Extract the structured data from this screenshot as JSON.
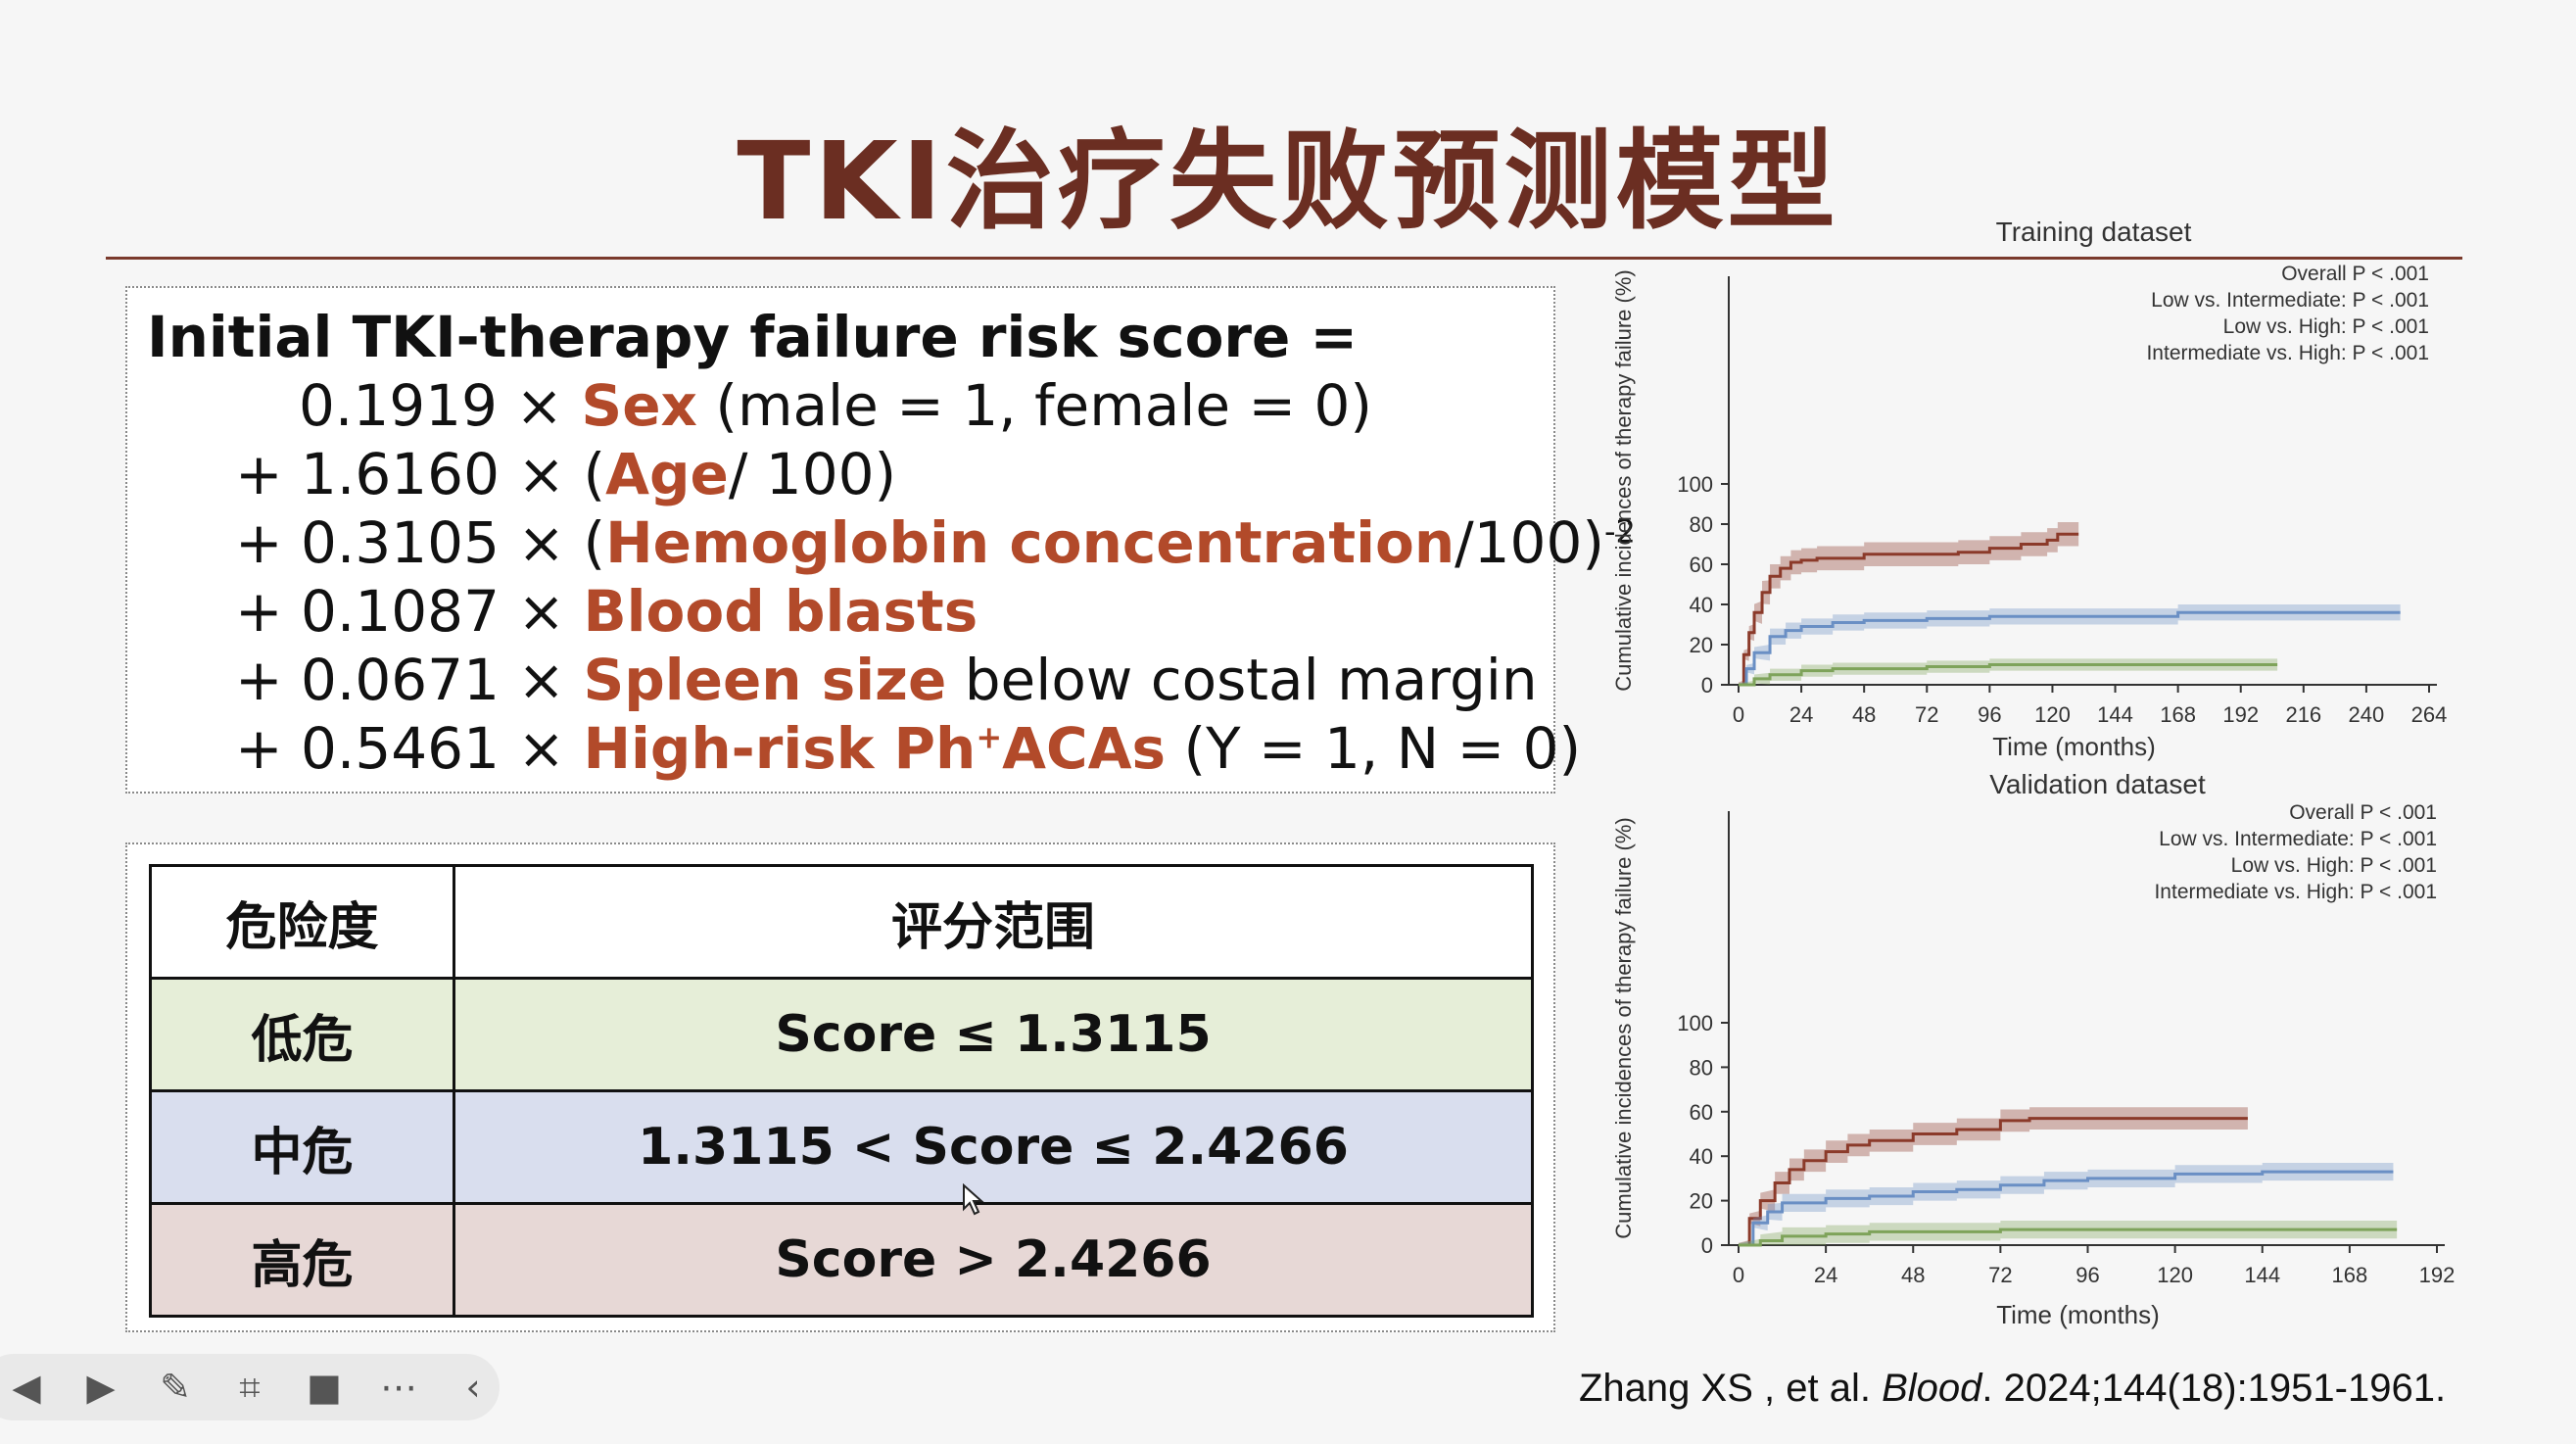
{
  "slide": {
    "title": "TKI治疗失败预测模型",
    "citation": {
      "authors": "Zhang XS , et al. ",
      "journal": "Blood",
      "details": ". 2024;144(18):1951-1961."
    }
  },
  "formula": {
    "heading": "Initial TKI-therapy failure risk score =",
    "terms": [
      {
        "prefix": "0.1919 × ",
        "name": "Sex",
        "suffix": " (male = 1, female = 0)"
      },
      {
        "prefix": "+ 1.6160 × (",
        "name": "Age",
        "suffix": "/ 100)"
      },
      {
        "prefix": "+ 0.3105 × (",
        "name": "Hemoglobin concentration",
        "suffix": "/100)",
        "superscript": "-2"
      },
      {
        "prefix": "+ 0.1087 × ",
        "name": "Blood blasts",
        "suffix": ""
      },
      {
        "prefix": "+ 0.0671 × ",
        "name": "Spleen size",
        "suffix": " below costal margin"
      },
      {
        "prefix": "+ 0.5461 × ",
        "name": "High-risk Ph",
        "name_sup": "+",
        "name_tail": "ACAs",
        "suffix": " (Y = 1, N = 0)"
      }
    ]
  },
  "risk_table": {
    "headers": [
      "危险度",
      "评分范围"
    ],
    "rows": [
      {
        "level": "低危",
        "range": "Score ≤ 1.3115"
      },
      {
        "level": "中危",
        "range": "1.3115 < Score ≤ 2.4266"
      },
      {
        "level": "高危",
        "range": "Score > 2.4266"
      }
    ]
  },
  "colors": {
    "title": "#6b2e22",
    "highlight": "#b24a2a",
    "low_row": "#e6eed8",
    "mid_row": "#d9deee",
    "high_row": "#e7d8d6",
    "high_series": "#8b3a2a",
    "intermediate_series": "#6a8fc4",
    "low_series": "#7ea35a"
  },
  "chart_data": [
    {
      "type": "line",
      "title": "Training dataset",
      "xlabel": "Time (months)",
      "ylabel": "Cumulative incidences of therapy failure (%)",
      "xticks": [
        0,
        24,
        48,
        72,
        96,
        120,
        144,
        168,
        192,
        216,
        240,
        264
      ],
      "yticks": [
        0,
        20,
        40,
        60,
        80,
        100
      ],
      "xlim": [
        0,
        264
      ],
      "ylim": [
        0,
        100
      ],
      "annotations": [
        "Overall P < .001",
        "Low vs. Intermediate: P < .001",
        "Low vs. High: P < .001",
        "Intermediate vs. High: P < .001"
      ],
      "series": [
        {
          "key": "high",
          "x": [
            0,
            2,
            4,
            6,
            9,
            12,
            16,
            20,
            24,
            30,
            36,
            48,
            60,
            72,
            84,
            96,
            108,
            118,
            122,
            130
          ],
          "y": [
            0,
            15,
            26,
            36,
            46,
            54,
            58,
            61,
            62,
            63,
            63,
            65,
            65,
            65,
            66,
            68,
            70,
            72,
            75,
            75
          ],
          "band": 6
        },
        {
          "key": "intermediate",
          "x": [
            0,
            3,
            6,
            12,
            18,
            24,
            36,
            48,
            60,
            72,
            96,
            120,
            144,
            168,
            200,
            230,
            253
          ],
          "y": [
            0,
            8,
            16,
            24,
            27,
            29,
            31,
            32,
            32,
            33,
            34,
            34,
            34,
            36,
            36,
            36,
            36
          ],
          "band": 4
        },
        {
          "key": "low",
          "x": [
            0,
            6,
            12,
            24,
            36,
            48,
            72,
            96,
            120,
            150,
            180,
            206
          ],
          "y": [
            0,
            3,
            5,
            7,
            8,
            8,
            9,
            10,
            10,
            10,
            10,
            10
          ],
          "band": 3
        }
      ]
    },
    {
      "type": "line",
      "title": "Validation dataset",
      "xlabel": "Time (months)",
      "ylabel": "Cumulative incidences of therapy failure (%)",
      "xticks": [
        0,
        24,
        48,
        72,
        96,
        120,
        144,
        168,
        192
      ],
      "yticks": [
        0,
        20,
        40,
        60,
        80,
        100
      ],
      "xlim": [
        0,
        192
      ],
      "ylim": [
        0,
        100
      ],
      "annotations": [
        "Overall P < .001",
        "Low vs. Intermediate: P < .001",
        "Low vs. High: P < .001",
        "Intermediate vs. High: P < .001"
      ],
      "series": [
        {
          "key": "high",
          "x": [
            0,
            3,
            6,
            10,
            14,
            18,
            24,
            30,
            36,
            48,
            60,
            70,
            72,
            80,
            96,
            120,
            140
          ],
          "y": [
            0,
            12,
            20,
            28,
            34,
            38,
            42,
            45,
            47,
            50,
            52,
            52,
            56,
            57,
            57,
            57,
            57
          ],
          "band": 5
        },
        {
          "key": "intermediate",
          "x": [
            0,
            4,
            8,
            12,
            24,
            36,
            48,
            60,
            72,
            84,
            96,
            120,
            144,
            168,
            180
          ],
          "y": [
            0,
            10,
            15,
            19,
            21,
            22,
            24,
            25,
            27,
            29,
            30,
            32,
            33,
            33,
            33
          ],
          "band": 4
        },
        {
          "key": "low",
          "x": [
            0,
            6,
            12,
            24,
            36,
            48,
            72,
            96,
            120,
            150,
            181
          ],
          "y": [
            0,
            2,
            4,
            5,
            6,
            6,
            7,
            7,
            7,
            7,
            7
          ],
          "band": 4
        }
      ]
    }
  ],
  "toolbar": {
    "icons": [
      "prev-icon",
      "next-icon",
      "pen-icon",
      "screenshot-icon",
      "camera-icon",
      "more-icon",
      "collapse-icon"
    ],
    "glyphs": [
      "◀",
      "▶",
      "✎",
      "⌗",
      "■",
      "⋯",
      "‹"
    ]
  }
}
